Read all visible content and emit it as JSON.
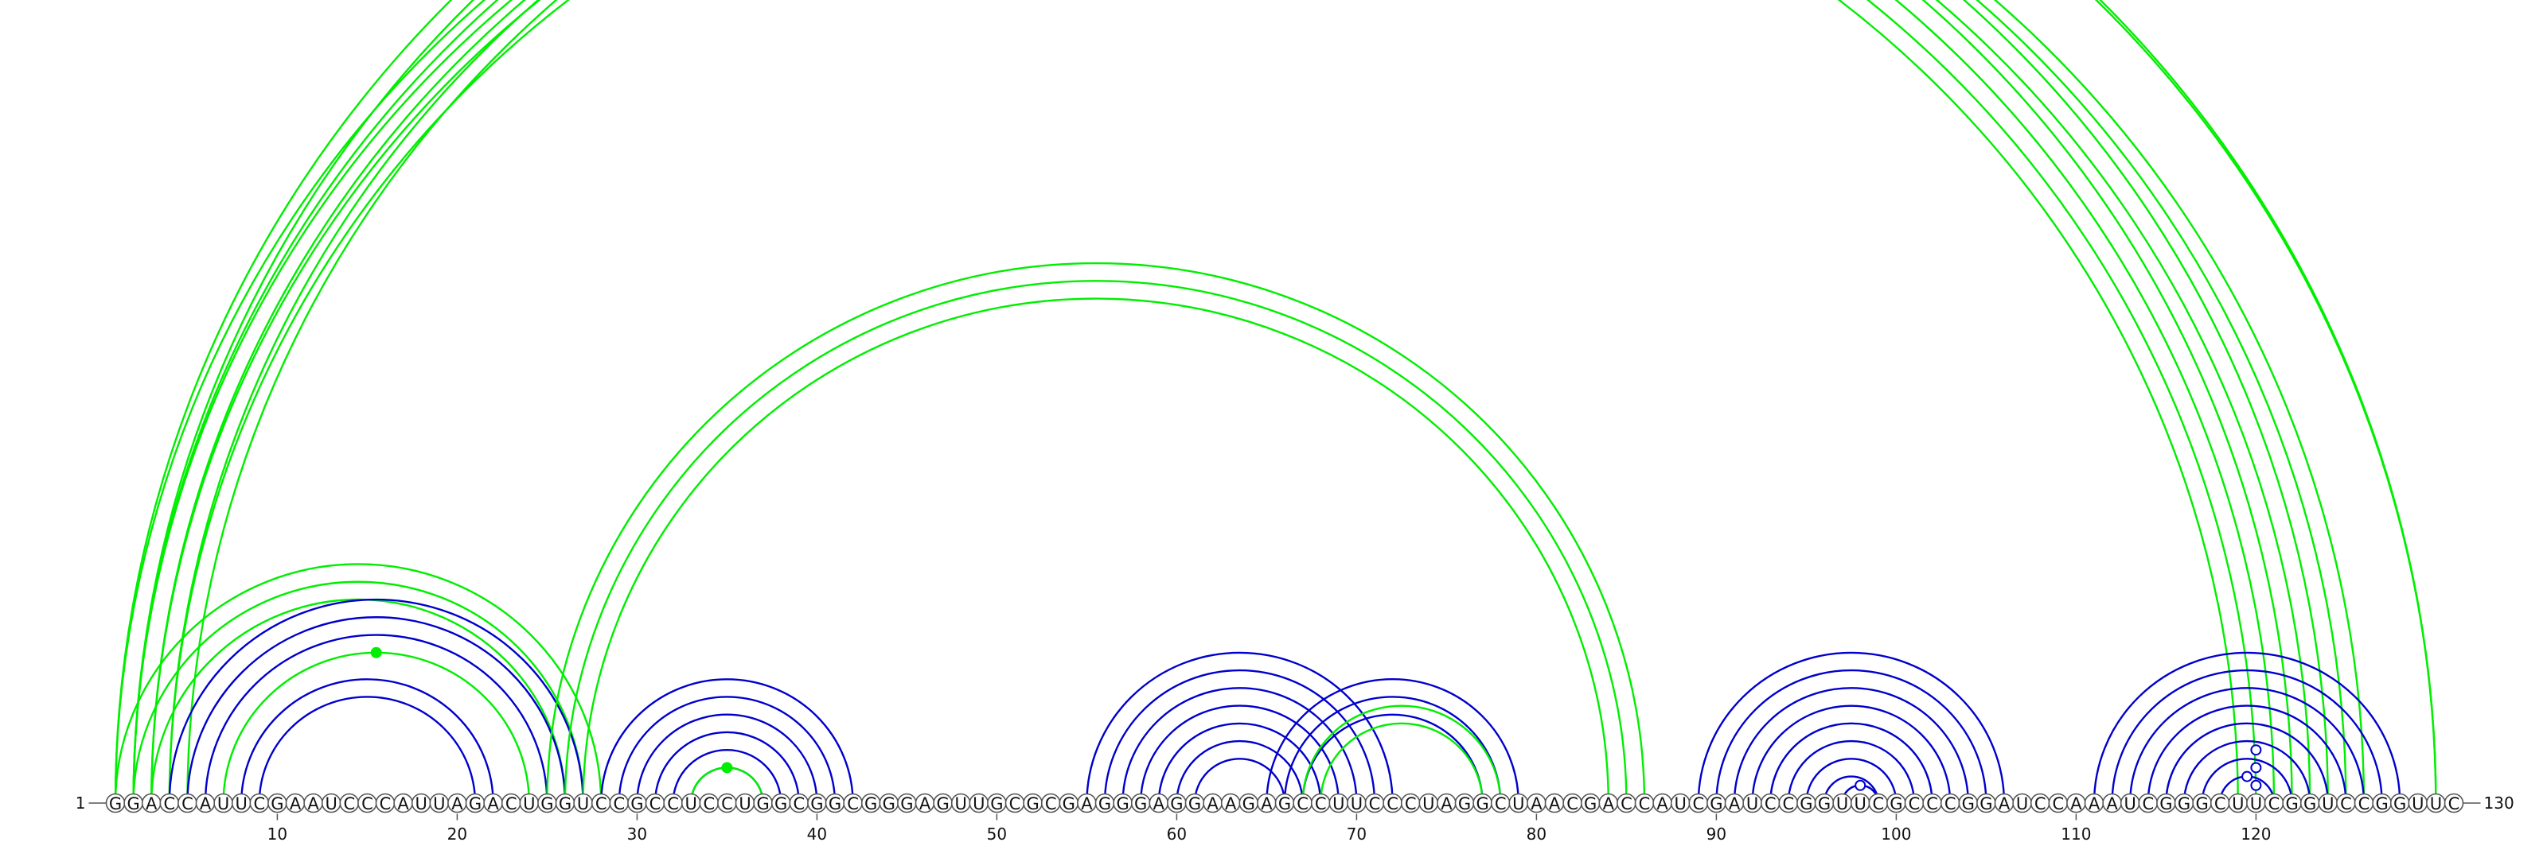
{
  "diagram": {
    "type": "rna-arc-diagram",
    "sequence": "GGACCAUUCGAAUCCCAUUAGACUGGUCCGCCUCCUGGCGGCGGGAGUUGCGCGAGGGAGGAAGAGCCUUCCCUAGGCUAACGACCAUCGAUCCGGUUCGCCCGGAUCCAAAUCGGGCUUCGGUCCGGUUC",
    "start_label": "1",
    "end_label": "130",
    "ticks": [
      10,
      20,
      30,
      40,
      50,
      60,
      70,
      80,
      90,
      100,
      110,
      120
    ],
    "colors": {
      "green": "#00ee00",
      "blue": "#0000cc",
      "axis": "#555555",
      "text": "#111111",
      "circle_border": "#555555"
    },
    "arc_groups": [
      {
        "color": "green",
        "pairs": [
          [
            1,
            122
          ],
          [
            2,
            121
          ],
          [
            3,
            120
          ],
          [
            4,
            119
          ]
        ]
      },
      {
        "color": "green",
        "pairs": [
          [
            2,
            124
          ],
          [
            3,
            123
          ],
          [
            4,
            125
          ],
          [
            5,
            126
          ]
        ]
      },
      {
        "color": "green",
        "pairs": [
          [
            1,
            130
          ],
          [
            2,
            130
          ]
        ],
        "marker": {
          "arc": 0,
          "style": "open"
        }
      },
      {
        "color": "green",
        "pairs": [
          [
            1,
            28
          ],
          [
            2,
            27
          ],
          [
            3,
            26
          ]
        ]
      },
      {
        "color": "green",
        "pairs": [
          [
            7,
            24
          ]
        ],
        "marker": {
          "arc": 0,
          "style": "filled"
        }
      },
      {
        "color": "blue",
        "pairs": [
          [
            4,
            27
          ],
          [
            5,
            26
          ],
          [
            6,
            25
          ],
          [
            8,
            22
          ],
          [
            9,
            21
          ]
        ]
      },
      {
        "color": "green",
        "pairs": [
          [
            25,
            86
          ],
          [
            26,
            85
          ],
          [
            27,
            84
          ]
        ]
      },
      {
        "color": "blue",
        "pairs": [
          [
            28,
            42
          ],
          [
            29,
            41
          ],
          [
            30,
            40
          ],
          [
            31,
            39
          ],
          [
            32,
            38
          ],
          [
            33,
            37
          ]
        ]
      },
      {
        "color": "green",
        "pairs": [
          [
            33,
            37
          ]
        ],
        "marker": {
          "arc": 0,
          "style": "filled"
        }
      },
      {
        "color": "blue",
        "pairs": [
          [
            55,
            72
          ],
          [
            56,
            71
          ],
          [
            57,
            70
          ],
          [
            58,
            69
          ],
          [
            59,
            68
          ],
          [
            60,
            67
          ],
          [
            61,
            66
          ]
        ]
      },
      {
        "color": "blue",
        "pairs": [
          [
            65,
            79
          ],
          [
            66,
            78
          ],
          [
            67,
            77
          ]
        ]
      },
      {
        "color": "green",
        "pairs": [
          [
            67,
            78
          ],
          [
            68,
            77
          ]
        ]
      },
      {
        "color": "blue",
        "pairs": [
          [
            89,
            106
          ],
          [
            90,
            105
          ],
          [
            91,
            104
          ],
          [
            92,
            103
          ],
          [
            93,
            102
          ],
          [
            94,
            101
          ],
          [
            95,
            100
          ],
          [
            96,
            99
          ],
          [
            97,
            99
          ]
        ],
        "marker": {
          "arc": 8,
          "style": "open"
        }
      },
      {
        "color": "blue",
        "pairs": [
          [
            111,
            128
          ],
          [
            112,
            127
          ],
          [
            113,
            126
          ],
          [
            114,
            125
          ],
          [
            115,
            124
          ],
          [
            116,
            123
          ],
          [
            117,
            122
          ],
          [
            118,
            121
          ]
        ],
        "marker": {
          "arc": 7,
          "style": "open"
        }
      },
      {
        "color": "blue",
        "markers_open": [
          [
            119,
            121
          ],
          [
            118,
            122
          ],
          [
            117,
            123
          ]
        ]
      }
    ]
  }
}
